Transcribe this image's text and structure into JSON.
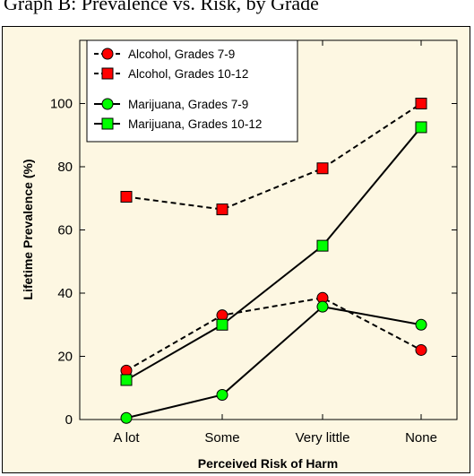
{
  "title": "Graph B: Prevalence vs. Risk, by Grade",
  "chart_data": {
    "type": "line",
    "categories": [
      "A lot",
      "Some",
      "Very little",
      "None"
    ],
    "xlabel": "Perceived Risk of Harm",
    "ylabel": "Lifetime Prevalence (%)",
    "ylim": [
      0,
      120
    ],
    "yticks": [
      0,
      20,
      40,
      60,
      80,
      100
    ],
    "grid": false,
    "legend_placement": "top-left",
    "series": [
      {
        "name": "Alcohol, Grades 7-9",
        "values": [
          15.5,
          33,
          38.5,
          22
        ],
        "marker": "circle",
        "color": "#ff0000",
        "dash": true
      },
      {
        "name": "Alcohol, Grades 10-12",
        "values": [
          70.5,
          66.5,
          79.5,
          100
        ],
        "marker": "square",
        "color": "#ff0000",
        "dash": true
      },
      {
        "name": "Marijuana, Grades 7-9",
        "values": [
          0.5,
          7.8,
          35.7,
          30
        ],
        "marker": "circle",
        "color": "#00ff00",
        "dash": false
      },
      {
        "name": "Marijuana, Grades 10-12",
        "values": [
          12.5,
          30,
          55,
          92.5
        ],
        "marker": "square",
        "color": "#00ff00",
        "dash": false
      }
    ]
  }
}
